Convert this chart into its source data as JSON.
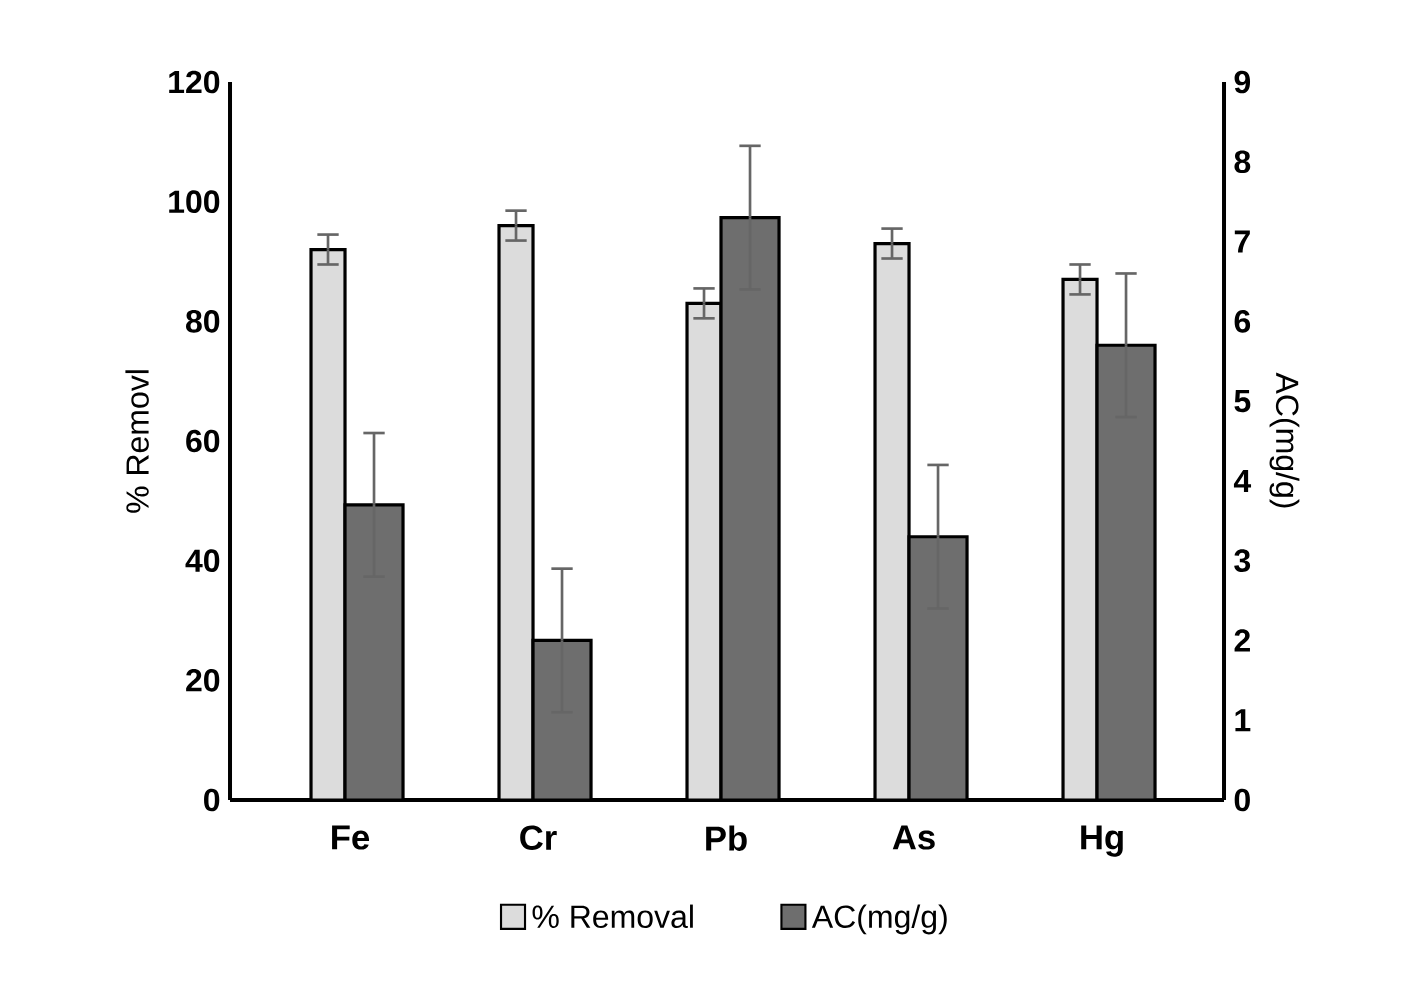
{
  "chart_data": {
    "type": "bar",
    "categories": [
      "Fe",
      "Cr",
      "Pb",
      "As",
      "Hg"
    ],
    "series": [
      {
        "name": "% Removal",
        "color": "#dcdcdc",
        "values": [
          92,
          96,
          83,
          93,
          87
        ],
        "errors": [
          2.5,
          2.5,
          2.5,
          2.5,
          2.5
        ]
      },
      {
        "name": "AC(mg/g)",
        "color": "#6e6e6e",
        "axis": "y2",
        "values": [
          3.7,
          2.0,
          7.3,
          3.3,
          5.7
        ],
        "errors": [
          0.9,
          0.9,
          0.9,
          0.9,
          0.9
        ]
      }
    ],
    "ylabel": "% Removl",
    "y2label": "AC(mg/g)",
    "ylim": [
      0,
      120
    ],
    "yticks": [
      0,
      20,
      40,
      60,
      80,
      100,
      120
    ],
    "y2lim": [
      0,
      9
    ],
    "y2ticks": [
      0,
      1,
      2,
      3,
      4,
      5,
      6,
      7,
      8,
      9
    ],
    "grid": false,
    "legend": "bottom"
  }
}
